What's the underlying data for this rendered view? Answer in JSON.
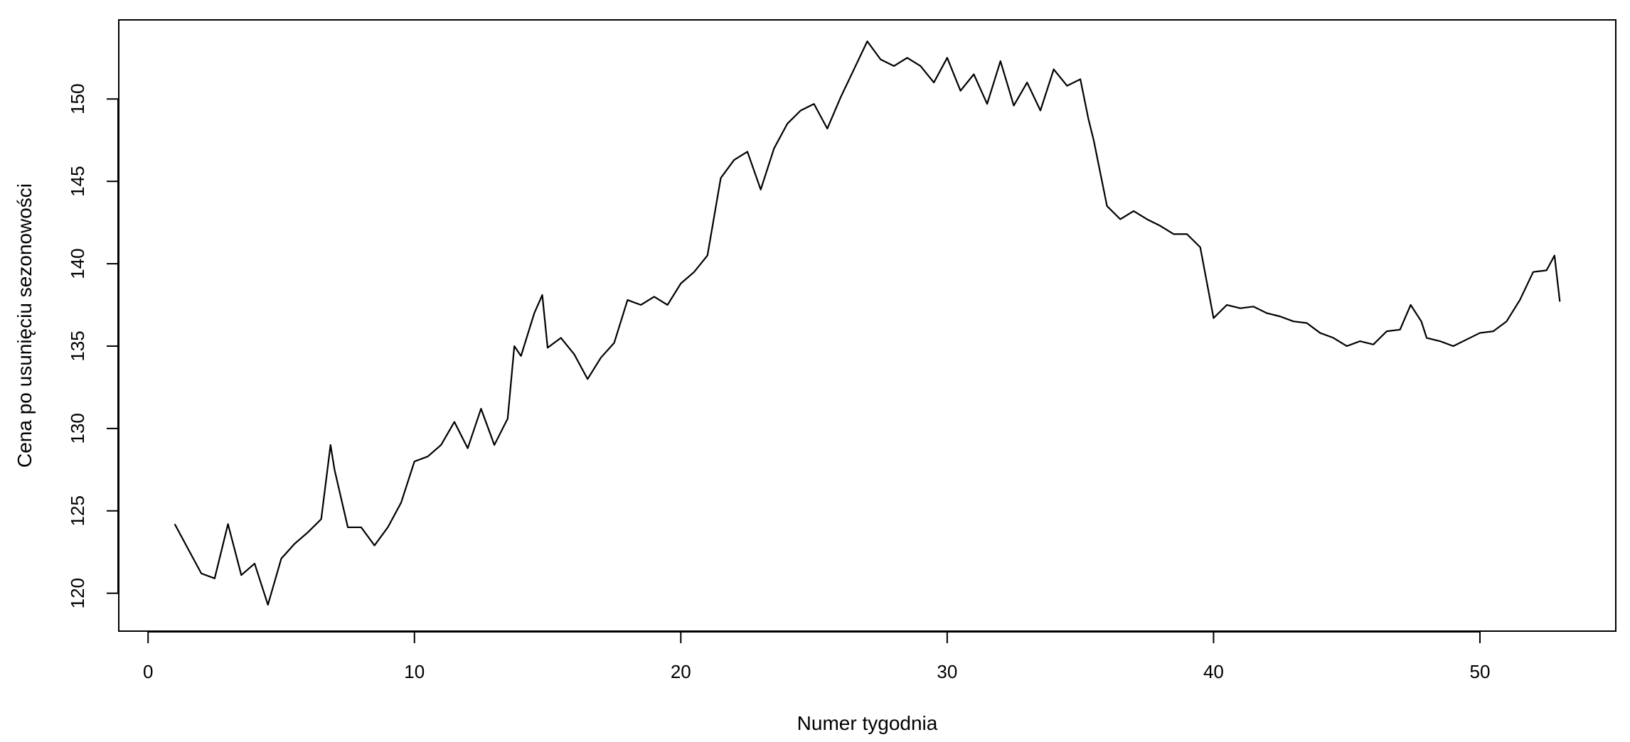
{
  "chart_data": {
    "type": "line",
    "title": "",
    "xlabel": "Numer tygodnia",
    "ylabel": "Cena po usunięciu sezonowości",
    "xlim": [
      -1.1,
      55.1
    ],
    "ylim": [
      117.7,
      154.8
    ],
    "xticks": [
      0,
      10,
      20,
      30,
      40,
      50
    ],
    "xtick_labels": [
      "0",
      "10",
      "20",
      "30",
      "40",
      "50"
    ],
    "yticks": [
      120,
      125,
      130,
      135,
      140,
      145,
      150
    ],
    "ytick_labels": [
      "120",
      "125",
      "130",
      "135",
      "140",
      "145",
      "150"
    ],
    "grid": false,
    "line_color": "#000000",
    "series": [
      {
        "x": [
          1,
          1.5,
          2,
          2.5,
          3,
          3.5,
          4,
          4.5,
          5,
          5.5,
          6,
          6.5,
          6.85,
          7,
          7.5,
          8,
          8.5,
          9,
          9.5,
          10,
          10.5,
          11,
          11.5,
          12,
          12.5,
          13,
          13.5,
          13.75,
          14,
          14.5,
          14.8,
          15,
          15.5,
          16,
          16.5,
          17,
          17.5,
          18,
          18.5,
          19,
          19.5,
          20,
          20.5,
          21,
          21.5,
          22,
          22.5,
          23,
          23.5,
          24,
          24.5,
          25,
          25.5,
          26,
          26.5,
          27,
          27.5,
          28,
          28.5,
          29,
          29.5,
          30,
          30.5,
          31,
          31.5,
          32,
          32.5,
          33,
          33.5,
          34,
          34.5,
          35,
          35.3,
          35.5,
          36,
          36.5,
          37,
          37.5,
          38,
          38.5,
          39,
          39.5,
          39.85,
          40,
          40.5,
          41,
          41.5,
          42,
          42.5,
          43,
          43.5,
          44,
          44.5,
          45,
          45.5,
          46,
          46.5,
          47,
          47.4,
          47.8,
          48,
          48.5,
          49,
          49.5,
          50,
          50.5,
          51,
          51.5,
          52,
          52.5,
          52.8,
          53
        ],
        "y": [
          124.2,
          122.7,
          121.2,
          120.9,
          124.2,
          121.1,
          121.8,
          119.3,
          122.1,
          123.0,
          123.7,
          124.5,
          129.0,
          127.5,
          124.0,
          124.0,
          122.9,
          124.0,
          125.5,
          128.0,
          128.3,
          129.0,
          130.4,
          128.8,
          131.2,
          129.0,
          130.6,
          135.0,
          134.4,
          137.0,
          138.1,
          134.9,
          135.5,
          134.5,
          133.0,
          134.3,
          135.2,
          137.8,
          137.5,
          138.0,
          137.5,
          138.8,
          139.5,
          140.5,
          145.2,
          146.3,
          146.8,
          144.5,
          147.0,
          148.5,
          149.3,
          149.7,
          148.2,
          150.1,
          151.8,
          153.5,
          152.4,
          152.0,
          152.5,
          152.0,
          151.0,
          152.5,
          150.5,
          151.5,
          149.7,
          152.3,
          149.6,
          151.0,
          149.3,
          151.8,
          150.8,
          151.2,
          148.8,
          147.5,
          143.5,
          142.7,
          143.2,
          142.7,
          142.3,
          141.8,
          141.8,
          141.0,
          138.0,
          136.7,
          137.5,
          137.3,
          137.4,
          137.0,
          136.8,
          136.5,
          136.4,
          135.8,
          135.5,
          135.0,
          135.3,
          135.1,
          135.9,
          136.0,
          137.5,
          136.5,
          135.5,
          135.3,
          135.0,
          135.4,
          135.8,
          135.9,
          136.5,
          137.8,
          139.5,
          139.6,
          140.5,
          137.7
        ]
      }
    ]
  }
}
